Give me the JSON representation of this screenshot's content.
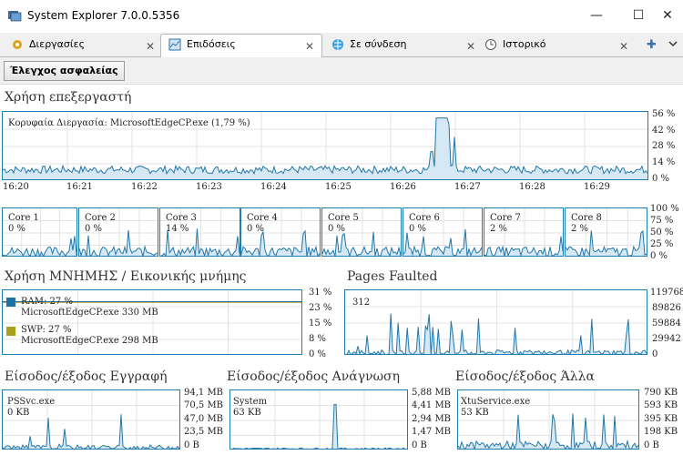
{
  "window": {
    "title": "System Explorer 7.0.0.5356",
    "controls": {
      "minimize": "—",
      "maximize": "☐",
      "close": "✕"
    }
  },
  "tabs": [
    {
      "label": "Διεργασίες",
      "icon": "gear-icon",
      "close": "✕"
    },
    {
      "label": "Επιδόσεις",
      "icon": "chart-icon",
      "close": "✕"
    },
    {
      "label": "Σε σύνδεση",
      "icon": "globe-icon",
      "close": "✕"
    },
    {
      "label": "Ιστορικό",
      "icon": "clock-icon",
      "close": "✕"
    }
  ],
  "new_tab_symbol": "✚",
  "toolbar": {
    "security_label": "Έλεγχος ασφαλείας"
  },
  "cpu": {
    "heading": "Χρήση επεξεργαστή",
    "top_process": "Κορυφαία Διεργασία: MicrosoftEdgeCP.exe (1,79 %)",
    "y_ticks": [
      "56 %",
      "42 %",
      "28 %",
      "14 %",
      "0 %"
    ],
    "x_ticks": [
      "16:20",
      "16:21",
      "16:22",
      "16:23",
      "16:24",
      "16:25",
      "16:26",
      "16:27",
      "16:28",
      "16:29"
    ],
    "cores": [
      {
        "name": "Core 1",
        "value": "0 %"
      },
      {
        "name": "Core 2",
        "value": "0 %"
      },
      {
        "name": "Core 3",
        "value": "14 %"
      },
      {
        "name": "Core 4",
        "value": "0 %"
      },
      {
        "name": "Core 5",
        "value": "0 %"
      },
      {
        "name": "Core 6",
        "value": "0 %"
      },
      {
        "name": "Core 7",
        "value": "2 %"
      },
      {
        "name": "Core 8",
        "value": "2 %"
      }
    ],
    "core_y_ticks": [
      "100 %",
      "75 %",
      "50 %",
      "25 %",
      "0 %"
    ]
  },
  "memory": {
    "heading": "Χρήση ΜΝΗΜΗΣ / Εικονικής μνήμης",
    "ram_label": "RAM: 27 %",
    "ram_process": "MicrosoftEdgeCP.exe 330 MB",
    "swp_label": "SWP: 27 %",
    "swp_process": "MicrosoftEdgeCP.exe 298 MB",
    "y_ticks": [
      "31 %",
      "23 %",
      "15 %",
      "8 %",
      "0 %"
    ],
    "ram_color": "#1f6fa0",
    "swp_color": "#a8a01a"
  },
  "pages": {
    "heading": "Pages Faulted",
    "current": "312",
    "y_ticks": [
      "119768",
      "89826",
      "59884",
      "29942",
      "0"
    ]
  },
  "io_write": {
    "heading": "Είσοδος/έξοδος Εγγραφή",
    "process": "PSSvc.exe",
    "value": "0 KB",
    "y_ticks": [
      "94,1 MB",
      "70,5 MB",
      "47,0 MB",
      "23,5 MB",
      "0 B"
    ]
  },
  "io_read": {
    "heading": "Είσοδος/έξοδος Ανάγνωση",
    "process": "System",
    "value": "63 KB",
    "y_ticks": [
      "5,88 MB",
      "4,41 MB",
      "2,94 MB",
      "1,47 MB",
      "0 B"
    ]
  },
  "io_other": {
    "heading": "Είσοδος/έξοδος Άλλα",
    "process": "XtuService.exe",
    "value": "53 KB",
    "y_ticks": [
      "790 KB",
      "593 KB",
      "395 KB",
      "198 KB",
      "0 B"
    ]
  }
}
